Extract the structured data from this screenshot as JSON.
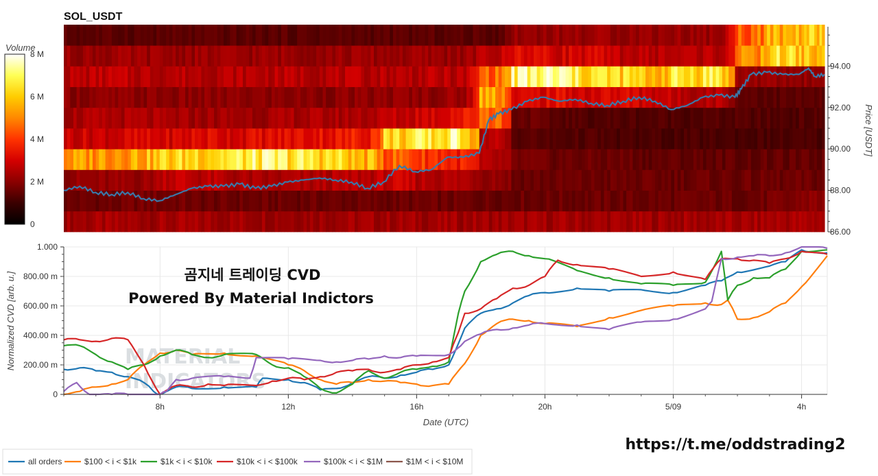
{
  "chart_data": [
    {
      "type": "heatmap",
      "title": "SOL_USDT",
      "ylabel": "Price [USDT]",
      "ylim": [
        86.0,
        95.9
      ],
      "yticks": [
        "86.00",
        "88.00",
        "90.00",
        "92.00",
        "94.00"
      ],
      "price_levels": [
        86.5,
        87.5,
        88.5,
        89.5,
        90.5,
        91.5,
        92.5,
        93.5,
        94.5,
        95.5
      ],
      "colorbar": {
        "title": "Volume",
        "ticks": [
          "0",
          "2 M",
          "4 M",
          "6 M",
          "8 M"
        ],
        "range": [
          0,
          8
        ],
        "unit": "M",
        "colorscale": [
          "#000000",
          "#3a0000",
          "#8b0000",
          "#d40000",
          "#ff3300",
          "#ff8800",
          "#ffcc00",
          "#ffff55",
          "#ffffff"
        ]
      },
      "volume_profile": [
        {
          "t": 4.5,
          "levels": [
            2.3,
            1.6,
            2.1,
            5.2,
            2.9,
            2.4,
            2.0,
            2.6,
            2.2,
            1.4
          ]
        },
        {
          "t": 5.5,
          "levels": [
            2.3,
            1.6,
            2.1,
            5.4,
            2.9,
            2.4,
            2.0,
            2.7,
            2.2,
            1.4
          ]
        },
        {
          "t": 6.5,
          "levels": [
            2.3,
            1.7,
            2.2,
            5.6,
            3.0,
            2.4,
            2.0,
            2.6,
            2.2,
            1.4
          ]
        },
        {
          "t": 7.5,
          "levels": [
            2.3,
            1.7,
            2.8,
            6.1,
            3.0,
            2.3,
            2.0,
            2.6,
            2.2,
            1.4
          ]
        },
        {
          "t": 8.5,
          "levels": [
            2.3,
            1.6,
            2.6,
            6.4,
            3.2,
            2.3,
            2.0,
            2.6,
            2.2,
            1.4
          ]
        },
        {
          "t": 9.5,
          "levels": [
            2.3,
            1.6,
            2.4,
            6.6,
            3.1,
            2.3,
            2.0,
            2.6,
            2.2,
            1.4
          ]
        },
        {
          "t": 10.5,
          "levels": [
            2.3,
            1.6,
            2.3,
            6.8,
            3.2,
            2.3,
            2.0,
            2.6,
            2.2,
            1.4
          ]
        },
        {
          "t": 11.5,
          "levels": [
            2.3,
            1.6,
            2.4,
            6.6,
            3.3,
            2.4,
            2.0,
            2.6,
            2.2,
            1.4
          ]
        },
        {
          "t": 12.5,
          "levels": [
            2.3,
            1.6,
            2.5,
            6.3,
            3.4,
            2.4,
            2.0,
            2.6,
            2.2,
            1.4
          ]
        },
        {
          "t": 13.5,
          "levels": [
            2.3,
            1.6,
            2.6,
            5.6,
            3.6,
            2.5,
            2.0,
            2.6,
            2.2,
            1.4
          ]
        },
        {
          "t": 14.5,
          "levels": [
            2.3,
            1.6,
            2.8,
            4.5,
            6.2,
            2.7,
            2.1,
            2.6,
            2.2,
            1.4
          ]
        },
        {
          "t": 15.5,
          "levels": [
            2.3,
            1.6,
            2.6,
            4.0,
            6.5,
            3.0,
            2.1,
            2.6,
            2.2,
            1.4
          ]
        },
        {
          "t": 16.5,
          "levels": [
            2.3,
            1.6,
            2.5,
            3.6,
            6.9,
            3.4,
            2.2,
            2.6,
            2.2,
            1.4
          ]
        },
        {
          "t": 17.5,
          "levels": [
            2.3,
            1.6,
            2.2,
            2.4,
            2.6,
            4.8,
            5.6,
            4.6,
            2.6,
            1.4
          ]
        },
        {
          "t": 18.5,
          "levels": [
            2.3,
            1.6,
            1.6,
            1.7,
            1.4,
            1.6,
            3.0,
            7.0,
            3.3,
            2.2
          ]
        },
        {
          "t": 19.5,
          "levels": [
            2.3,
            1.6,
            1.6,
            1.6,
            1.3,
            1.4,
            3.2,
            7.2,
            3.0,
            2.2
          ]
        },
        {
          "t": 20.5,
          "levels": [
            2.3,
            1.6,
            1.6,
            1.6,
            1.3,
            1.3,
            3.0,
            6.5,
            3.0,
            2.2
          ]
        },
        {
          "t": 21.5,
          "levels": [
            2.3,
            1.6,
            1.6,
            1.6,
            1.2,
            1.3,
            3.1,
            6.2,
            2.7,
            2.2
          ]
        },
        {
          "t": 22.5,
          "levels": [
            2.3,
            1.6,
            1.6,
            1.5,
            1.2,
            1.3,
            2.9,
            5.8,
            2.6,
            2.2
          ]
        },
        {
          "t": 23.5,
          "levels": [
            2.3,
            1.6,
            1.6,
            1.5,
            1.2,
            1.3,
            2.6,
            6.4,
            2.6,
            2.2
          ]
        },
        {
          "t": 24.5,
          "levels": [
            2.3,
            1.6,
            1.6,
            1.5,
            1.2,
            1.3,
            2.6,
            6.7,
            2.6,
            2.2
          ]
        },
        {
          "t": 25.5,
          "levels": [
            2.3,
            1.6,
            1.6,
            1.5,
            1.2,
            1.3,
            1.5,
            2.2,
            4.8,
            4.6
          ]
        },
        {
          "t": 26.5,
          "levels": [
            2.4,
            1.7,
            1.6,
            1.5,
            1.2,
            1.3,
            1.4,
            2.1,
            6.3,
            5.4
          ]
        },
        {
          "t": 27.5,
          "levels": [
            2.4,
            2.0,
            1.6,
            1.5,
            1.2,
            1.3,
            1.4,
            2.1,
            5.8,
            5.9
          ]
        }
      ],
      "price_line": {
        "name": "price",
        "x": [
          4.0,
          4.5,
          5.0,
          5.5,
          6.0,
          6.5,
          7.0,
          7.5,
          8.0,
          8.5,
          9.0,
          9.5,
          10.0,
          10.5,
          11.0,
          11.5,
          12.0,
          12.5,
          13.0,
          13.5,
          14.0,
          14.5,
          15.0,
          15.5,
          16.0,
          16.5,
          17.0,
          17.3,
          17.6,
          18.0,
          18.5,
          19.0,
          19.5,
          20.0,
          20.5,
          21.0,
          21.5,
          22.0,
          22.5,
          23.0,
          23.5,
          24.0,
          24.5,
          25.0,
          25.2,
          25.5,
          26.0,
          26.5,
          27.0,
          27.3,
          27.5,
          27.8
        ],
        "y": [
          88.0,
          88.2,
          87.9,
          87.8,
          87.9,
          87.6,
          87.5,
          87.8,
          88.1,
          88.2,
          88.2,
          88.3,
          88.1,
          88.2,
          88.4,
          88.5,
          88.6,
          88.5,
          88.4,
          88.1,
          88.4,
          89.2,
          88.9,
          89.0,
          89.6,
          89.6,
          89.8,
          91.4,
          91.7,
          91.9,
          92.3,
          92.5,
          92.3,
          92.4,
          92.2,
          92.1,
          92.3,
          92.5,
          92.3,
          91.9,
          92.1,
          92.5,
          92.6,
          92.5,
          92.9,
          93.6,
          93.7,
          93.6,
          93.6,
          93.9,
          93.5,
          93.6
        ]
      },
      "xrange": [
        4.0,
        27.8
      ]
    },
    {
      "type": "line",
      "xlabel": "Date (UTC)",
      "ylabel": "Normalized CVD [arb. u.]",
      "ylim": [
        0,
        1.0
      ],
      "yticks": [
        "0",
        "200.00 m",
        "400.00 m",
        "600.00 m",
        "800.00 m",
        "1.000"
      ],
      "xticks": [
        {
          "t": 8,
          "label": "8h"
        },
        {
          "t": 12,
          "label": "12h"
        },
        {
          "t": 16,
          "label": "16h"
        },
        {
          "t": 20,
          "label": "20h"
        },
        {
          "t": 24,
          "label": "5/09"
        },
        {
          "t": 28,
          "label": "4h"
        }
      ],
      "xrange": [
        5.0,
        28.8
      ],
      "series": [
        {
          "name": "all orders",
          "color": "#1f77b4",
          "x": [
            5.0,
            5.5,
            6.0,
            6.5,
            7.0,
            7.5,
            7.8,
            8.0,
            8.5,
            9.0,
            10.0,
            11.0,
            11.2,
            12.0,
            12.5,
            13.0,
            13.5,
            14.0,
            14.5,
            15.0,
            15.5,
            16.0,
            16.5,
            17.0,
            17.5,
            18.0,
            18.5,
            19.0,
            19.5,
            20.0,
            21.0,
            22.0,
            23.0,
            24.0,
            25.0,
            25.5,
            26.0,
            27.0,
            27.5,
            28.0,
            28.8
          ],
          "y": [
            0.17,
            0.18,
            0.16,
            0.15,
            0.12,
            0.08,
            0.02,
            0.0,
            0.05,
            0.04,
            0.05,
            0.05,
            0.11,
            0.1,
            0.08,
            0.03,
            0.04,
            0.08,
            0.12,
            0.11,
            0.13,
            0.15,
            0.17,
            0.2,
            0.45,
            0.55,
            0.58,
            0.62,
            0.67,
            0.69,
            0.72,
            0.7,
            0.71,
            0.69,
            0.74,
            0.77,
            0.83,
            0.87,
            0.9,
            0.98,
            0.96
          ]
        },
        {
          "name": "$100 < i < $1k",
          "color": "#ff7f0e",
          "x": [
            5.0,
            5.5,
            6.0,
            6.5,
            7.0,
            7.5,
            8.0,
            8.5,
            9.0,
            10.0,
            11.0,
            12.0,
            12.5,
            13.0,
            13.5,
            14.0,
            14.5,
            15.0,
            15.5,
            16.0,
            16.5,
            17.0,
            17.5,
            18.0,
            18.5,
            19.0,
            19.5,
            20.0,
            21.0,
            22.0,
            23.0,
            24.0,
            25.0,
            25.5,
            25.7,
            26.0,
            26.5,
            27.0,
            27.5,
            28.0,
            28.8
          ],
          "y": [
            0.0,
            0.02,
            0.05,
            0.07,
            0.1,
            0.2,
            0.28,
            0.3,
            0.27,
            0.28,
            0.26,
            0.2,
            0.16,
            0.1,
            0.07,
            0.08,
            0.1,
            0.09,
            0.08,
            0.07,
            0.06,
            0.07,
            0.21,
            0.4,
            0.48,
            0.51,
            0.5,
            0.48,
            0.46,
            0.52,
            0.57,
            0.6,
            0.62,
            0.61,
            0.64,
            0.51,
            0.52,
            0.56,
            0.62,
            0.73,
            0.94
          ]
        },
        {
          "name": "$1k < i < $10k",
          "color": "#2ca02c",
          "x": [
            5.0,
            5.5,
            6.0,
            6.5,
            7.0,
            7.5,
            8.0,
            8.5,
            9.0,
            9.5,
            10.0,
            11.0,
            11.5,
            12.0,
            12.5,
            13.0,
            13.5,
            14.0,
            14.5,
            15.0,
            15.5,
            16.0,
            16.5,
            17.0,
            17.3,
            17.5,
            18.0,
            18.5,
            19.0,
            19.5,
            20.0,
            21.0,
            22.0,
            23.0,
            24.0,
            25.0,
            25.5,
            25.7,
            26.0,
            26.5,
            27.0,
            27.5,
            28.0,
            28.8
          ],
          "y": [
            0.33,
            0.33,
            0.27,
            0.22,
            0.17,
            0.2,
            0.26,
            0.3,
            0.27,
            0.25,
            0.27,
            0.27,
            0.2,
            0.18,
            0.12,
            0.04,
            0.01,
            0.07,
            0.16,
            0.11,
            0.15,
            0.17,
            0.19,
            0.22,
            0.55,
            0.7,
            0.9,
            0.95,
            0.97,
            0.94,
            0.92,
            0.84,
            0.79,
            0.75,
            0.74,
            0.76,
            0.97,
            0.64,
            0.74,
            0.79,
            0.79,
            0.85,
            0.97,
            0.98
          ]
        },
        {
          "name": "$10k < i < $100k",
          "color": "#d62728",
          "x": [
            5.0,
            5.5,
            6.0,
            6.5,
            7.0,
            7.5,
            8.0,
            8.5,
            9.0,
            9.5,
            10.0,
            11.0,
            11.5,
            12.0,
            12.5,
            13.0,
            13.5,
            14.0,
            14.5,
            15.0,
            15.5,
            16.0,
            16.5,
            17.0,
            17.3,
            17.5,
            18.0,
            18.5,
            19.0,
            19.5,
            20.0,
            20.4,
            21.0,
            22.0,
            23.0,
            24.0,
            25.0,
            25.5,
            26.0,
            26.5,
            27.0,
            27.5,
            28.0,
            28.8
          ],
          "y": [
            0.37,
            0.37,
            0.36,
            0.38,
            0.37,
            0.2,
            0.0,
            0.06,
            0.05,
            0.07,
            0.06,
            0.06,
            0.09,
            0.11,
            0.1,
            0.12,
            0.15,
            0.16,
            0.17,
            0.15,
            0.17,
            0.2,
            0.22,
            0.25,
            0.42,
            0.55,
            0.58,
            0.65,
            0.72,
            0.74,
            0.8,
            0.91,
            0.88,
            0.85,
            0.8,
            0.83,
            0.78,
            0.92,
            0.92,
            0.91,
            0.89,
            0.92,
            0.97,
            0.95
          ]
        },
        {
          "name": "$100k < i < $1M",
          "color": "#9467bd",
          "x": [
            5.0,
            5.4,
            5.8,
            6.5,
            7.0,
            7.7,
            8.0,
            8.2,
            8.5,
            9.0,
            10.0,
            10.8,
            11.0,
            12.0,
            13.0,
            13.5,
            14.0,
            14.5,
            15.0,
            15.5,
            16.0,
            17.0,
            17.5,
            18.0,
            18.5,
            19.0,
            19.5,
            20.0,
            21.0,
            22.0,
            23.0,
            24.0,
            25.0,
            25.2,
            25.5,
            26.0,
            26.5,
            27.0,
            27.5,
            28.0,
            28.8
          ],
          "y": [
            0.02,
            0.08,
            0.0,
            0.0,
            0.0,
            0.0,
            0.0,
            0.02,
            0.1,
            0.11,
            0.12,
            0.11,
            0.25,
            0.24,
            0.23,
            0.22,
            0.23,
            0.24,
            0.26,
            0.25,
            0.26,
            0.27,
            0.36,
            0.41,
            0.44,
            0.45,
            0.47,
            0.48,
            0.47,
            0.44,
            0.49,
            0.51,
            0.58,
            0.63,
            0.92,
            0.93,
            0.94,
            0.94,
            0.96,
            1.0,
            0.99
          ]
        },
        {
          "name": "$1M < i < $10M",
          "color": "#8c564b",
          "x": [],
          "y": []
        }
      ]
    }
  ],
  "overlay": {
    "line1": "곰지네 트레이딩 CVD",
    "line2": "Powered By Material Indictors",
    "url": "https://t.me/oddstrading2",
    "watermark_line1": "MATERIAL",
    "watermark_line2": "INDICATORS"
  }
}
